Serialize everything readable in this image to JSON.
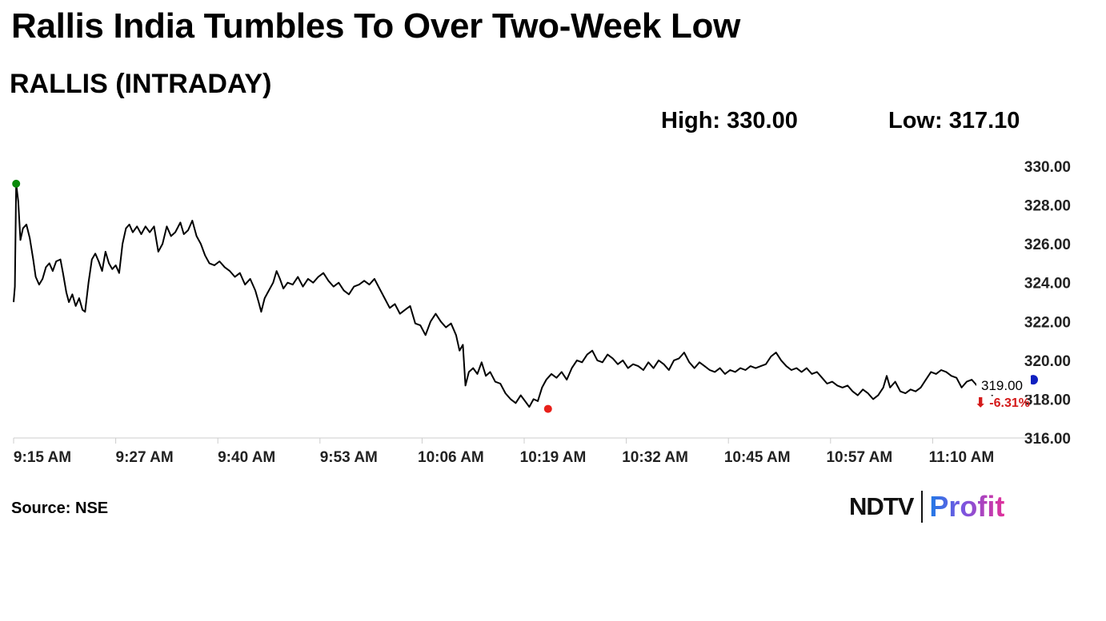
{
  "header": {
    "title": "Rallis India Tumbles To Over Two-Week Low",
    "subtitle": "RALLIS (INTRADAY)",
    "high_label": "High: 330.00",
    "low_label": "Low: 317.10"
  },
  "footer": {
    "source": "Source: NSE",
    "logo_left": "NDTV",
    "logo_right": "Profit"
  },
  "colors": {
    "line": "#000000",
    "open_marker": "#0a8a0a",
    "low_marker": "#e8201a",
    "last_marker": "#1020c0",
    "change_text": "#d41a1a",
    "axis": "#cccccc"
  },
  "chart_data": {
    "type": "line",
    "title": "RALLIS (INTRADAY)",
    "xlabel": "",
    "ylabel": "",
    "x_ticks": [
      "9:15 AM",
      "9:27 AM",
      "9:40 AM",
      "9:53 AM",
      "10:06 AM",
      "10:19 AM",
      "10:32 AM",
      "10:45 AM",
      "10:57 AM",
      "11:10 AM"
    ],
    "y_ticks": [
      "330.00",
      "328.00",
      "326.00",
      "324.00",
      "322.00",
      "320.00",
      "318.00",
      "316.00"
    ],
    "ylim": [
      316,
      330
    ],
    "x_range_minutes": [
      0,
      120
    ],
    "grid": false,
    "last_price_label": "319.00",
    "change_label": "⬇ -6.31%",
    "series": [
      {
        "values": [
          [
            0.0,
            323.0
          ],
          [
            0.15,
            323.8
          ],
          [
            0.3,
            329.1
          ],
          [
            0.55,
            328.2
          ],
          [
            0.8,
            326.2
          ],
          [
            1.1,
            326.8
          ],
          [
            1.5,
            327.0
          ],
          [
            1.9,
            326.3
          ],
          [
            2.3,
            325.2
          ],
          [
            2.6,
            324.3
          ],
          [
            3.0,
            323.9
          ],
          [
            3.4,
            324.2
          ],
          [
            3.8,
            324.8
          ],
          [
            4.2,
            325.0
          ],
          [
            4.6,
            324.6
          ],
          [
            5.0,
            325.1
          ],
          [
            5.5,
            325.2
          ],
          [
            5.8,
            324.5
          ],
          [
            6.2,
            323.5
          ],
          [
            6.5,
            323.0
          ],
          [
            6.9,
            323.4
          ],
          [
            7.3,
            322.8
          ],
          [
            7.7,
            323.2
          ],
          [
            8.1,
            322.6
          ],
          [
            8.4,
            322.5
          ],
          [
            8.8,
            324.0
          ],
          [
            9.2,
            325.2
          ],
          [
            9.6,
            325.5
          ],
          [
            10.0,
            325.1
          ],
          [
            10.4,
            324.6
          ],
          [
            10.8,
            325.6
          ],
          [
            11.2,
            325.0
          ],
          [
            11.6,
            324.7
          ],
          [
            12.0,
            324.9
          ],
          [
            12.4,
            324.5
          ],
          [
            12.8,
            326.0
          ],
          [
            13.2,
            326.8
          ],
          [
            13.6,
            327.0
          ],
          [
            14.0,
            326.6
          ],
          [
            14.5,
            326.9
          ],
          [
            15.0,
            326.5
          ],
          [
            15.5,
            326.9
          ],
          [
            16.0,
            326.6
          ],
          [
            16.5,
            326.9
          ],
          [
            17.0,
            325.6
          ],
          [
            17.5,
            326.0
          ],
          [
            18.0,
            326.9
          ],
          [
            18.5,
            326.4
          ],
          [
            19.0,
            326.6
          ],
          [
            19.6,
            327.1
          ],
          [
            20.0,
            326.5
          ],
          [
            20.5,
            326.7
          ],
          [
            21.0,
            327.2
          ],
          [
            21.5,
            326.4
          ],
          [
            22.0,
            326.0
          ],
          [
            22.5,
            325.4
          ],
          [
            23.0,
            325.0
          ],
          [
            23.6,
            324.9
          ],
          [
            24.2,
            325.1
          ],
          [
            24.8,
            324.8
          ],
          [
            25.4,
            324.6
          ],
          [
            26.0,
            324.3
          ],
          [
            26.6,
            324.5
          ],
          [
            27.2,
            323.9
          ],
          [
            27.8,
            324.2
          ],
          [
            28.4,
            323.6
          ],
          [
            28.8,
            323.0
          ],
          [
            29.1,
            322.5
          ],
          [
            29.5,
            323.2
          ],
          [
            30.0,
            323.6
          ],
          [
            30.5,
            324.0
          ],
          [
            30.9,
            324.6
          ],
          [
            31.3,
            324.2
          ],
          [
            31.7,
            323.7
          ],
          [
            32.2,
            324.0
          ],
          [
            32.8,
            323.9
          ],
          [
            33.4,
            324.3
          ],
          [
            34.0,
            323.8
          ],
          [
            34.6,
            324.2
          ],
          [
            35.2,
            324.0
          ],
          [
            35.8,
            324.3
          ],
          [
            36.4,
            324.5
          ],
          [
            37.0,
            324.1
          ],
          [
            37.6,
            323.8
          ],
          [
            38.2,
            324.0
          ],
          [
            38.8,
            323.6
          ],
          [
            39.4,
            323.4
          ],
          [
            40.0,
            323.8
          ],
          [
            40.6,
            323.9
          ],
          [
            41.2,
            324.1
          ],
          [
            41.8,
            323.9
          ],
          [
            42.4,
            324.2
          ],
          [
            43.0,
            323.7
          ],
          [
            43.6,
            323.2
          ],
          [
            44.2,
            322.7
          ],
          [
            44.8,
            322.9
          ],
          [
            45.4,
            322.4
          ],
          [
            46.0,
            322.6
          ],
          [
            46.6,
            322.8
          ],
          [
            47.2,
            321.9
          ],
          [
            47.8,
            321.8
          ],
          [
            48.4,
            321.3
          ],
          [
            49.0,
            322.0
          ],
          [
            49.6,
            322.4
          ],
          [
            50.2,
            322.0
          ],
          [
            50.8,
            321.7
          ],
          [
            51.4,
            321.9
          ],
          [
            52.0,
            321.3
          ],
          [
            52.4,
            320.5
          ],
          [
            52.8,
            320.8
          ],
          [
            53.1,
            318.7
          ],
          [
            53.5,
            319.4
          ],
          [
            54.0,
            319.6
          ],
          [
            54.5,
            319.3
          ],
          [
            55.0,
            319.9
          ],
          [
            55.5,
            319.2
          ],
          [
            56.0,
            319.4
          ],
          [
            56.6,
            318.9
          ],
          [
            57.2,
            318.8
          ],
          [
            57.8,
            318.3
          ],
          [
            58.4,
            318.0
          ],
          [
            59.0,
            317.8
          ],
          [
            59.6,
            318.2
          ],
          [
            60.1,
            317.9
          ],
          [
            60.6,
            317.6
          ],
          [
            61.1,
            318.0
          ],
          [
            61.6,
            317.9
          ],
          [
            62.1,
            318.6
          ],
          [
            62.6,
            319.0
          ],
          [
            63.2,
            319.3
          ],
          [
            63.8,
            319.1
          ],
          [
            64.4,
            319.4
          ],
          [
            65.0,
            319.0
          ],
          [
            65.6,
            319.6
          ],
          [
            66.2,
            320.0
          ],
          [
            66.8,
            319.9
          ],
          [
            67.4,
            320.3
          ],
          [
            68.0,
            320.5
          ],
          [
            68.6,
            320.0
          ],
          [
            69.2,
            319.9
          ],
          [
            69.8,
            320.3
          ],
          [
            70.4,
            320.1
          ],
          [
            71.0,
            319.8
          ],
          [
            71.6,
            320.0
          ],
          [
            72.2,
            319.6
          ],
          [
            72.8,
            319.8
          ],
          [
            73.4,
            319.7
          ],
          [
            74.0,
            319.5
          ],
          [
            74.6,
            319.9
          ],
          [
            75.2,
            319.6
          ],
          [
            75.8,
            320.0
          ],
          [
            76.4,
            319.8
          ],
          [
            77.0,
            319.5
          ],
          [
            77.6,
            320.0
          ],
          [
            78.2,
            320.1
          ],
          [
            78.8,
            320.4
          ],
          [
            79.4,
            319.9
          ],
          [
            80.0,
            319.6
          ],
          [
            80.6,
            319.9
          ],
          [
            81.2,
            319.7
          ],
          [
            81.8,
            319.5
          ],
          [
            82.4,
            319.4
          ],
          [
            83.0,
            319.6
          ],
          [
            83.6,
            319.3
          ],
          [
            84.2,
            319.5
          ],
          [
            84.8,
            319.4
          ],
          [
            85.4,
            319.6
          ],
          [
            86.0,
            319.5
          ],
          [
            86.6,
            319.7
          ],
          [
            87.2,
            319.6
          ],
          [
            87.8,
            319.7
          ],
          [
            88.4,
            319.8
          ],
          [
            89.0,
            320.2
          ],
          [
            89.6,
            320.4
          ],
          [
            90.2,
            320.0
          ],
          [
            90.8,
            319.7
          ],
          [
            91.4,
            319.5
          ],
          [
            92.0,
            319.6
          ],
          [
            92.6,
            319.4
          ],
          [
            93.2,
            319.6
          ],
          [
            93.8,
            319.3
          ],
          [
            94.4,
            319.4
          ],
          [
            95.0,
            319.1
          ],
          [
            95.6,
            318.8
          ],
          [
            96.2,
            318.9
          ],
          [
            96.8,
            318.7
          ],
          [
            97.4,
            318.6
          ],
          [
            98.0,
            318.7
          ],
          [
            98.6,
            318.4
          ],
          [
            99.2,
            318.2
          ],
          [
            99.8,
            318.5
          ],
          [
            100.4,
            318.3
          ],
          [
            101.0,
            318.0
          ],
          [
            101.6,
            318.2
          ],
          [
            102.2,
            318.6
          ],
          [
            102.6,
            319.2
          ],
          [
            103.0,
            318.6
          ],
          [
            103.6,
            318.9
          ],
          [
            104.2,
            318.4
          ],
          [
            104.8,
            318.3
          ],
          [
            105.4,
            318.5
          ],
          [
            106.0,
            318.4
          ],
          [
            106.6,
            318.6
          ],
          [
            107.2,
            319.0
          ],
          [
            107.8,
            319.4
          ],
          [
            108.4,
            319.3
          ],
          [
            109.0,
            319.5
          ],
          [
            109.6,
            319.4
          ],
          [
            110.2,
            319.2
          ],
          [
            110.8,
            319.1
          ],
          [
            111.4,
            318.6
          ],
          [
            112.0,
            318.9
          ],
          [
            112.6,
            319.0
          ],
          [
            113.2,
            318.7
          ],
          [
            113.8,
            318.9
          ],
          [
            114.4,
            318.6
          ],
          [
            115.0,
            318.2
          ],
          [
            115.3,
            318.7
          ]
        ],
        "open": [
          0.3,
          329.1
        ],
        "low": [
          62.8,
          317.5
        ],
        "last": [
          120.0,
          319.0
        ]
      }
    ]
  }
}
